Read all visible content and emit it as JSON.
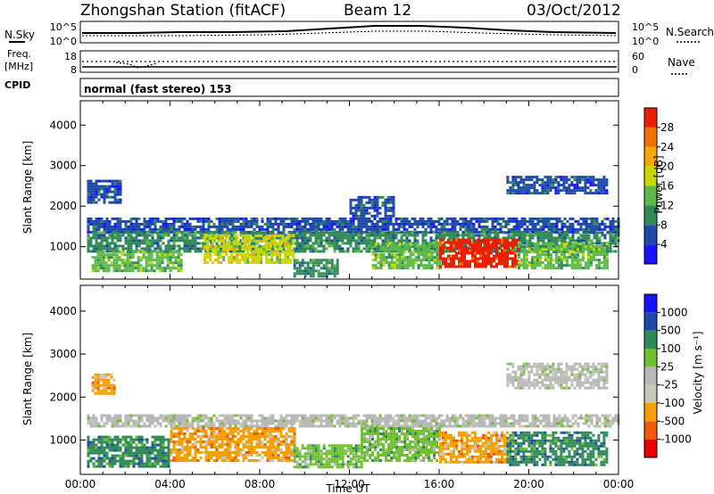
{
  "header": {
    "station": "Zhongshan Station (fitACF)",
    "beam": "Beam 12",
    "date": "03/Oct/2012"
  },
  "panels": {
    "nsky": {
      "left_label": "N.Sky",
      "right_label": "N.Search",
      "left_ticks": [
        "10^5",
        "10^0"
      ],
      "right_ticks": [
        "10^5",
        "10^0"
      ]
    },
    "freq": {
      "left_label_line1": "Freq.",
      "left_label_line2": "[MHz]",
      "right_label": "Nave",
      "left_ticks": [
        "18",
        "8"
      ],
      "right_ticks": [
        "60",
        "0"
      ]
    },
    "cpid": {
      "label": "CPID",
      "text": "normal (fast stereo) 153"
    }
  },
  "colors": {
    "power": [
      "#1414ff",
      "#1e4aa6",
      "#2f8a57",
      "#5bb94a",
      "#c8d800",
      "#f6a800",
      "#f07000",
      "#e82000"
    ],
    "velocity": [
      "#e80000",
      "#f05a00",
      "#f5a000",
      "#c8c8b8",
      "#b8b8b8",
      "#6ec030",
      "#2f8a57",
      "#1e4aa6",
      "#1414ff"
    ]
  },
  "chart_data": [
    {
      "type": "heatmap",
      "name": "power",
      "xlabel": "",
      "ylabel": "Slant Range [km]",
      "xlim": [
        0,
        24
      ],
      "ylim": [
        200,
        4600
      ],
      "y_ticks": [
        1000,
        2000,
        3000,
        4000
      ],
      "colorbar_label": "Power [dB]",
      "colorbar_ticks": [
        "4",
        "8",
        "12",
        "16",
        "20",
        "24",
        "28"
      ],
      "regions": [
        {
          "t0": 0.3,
          "t1": 24,
          "r0": 1380,
          "r1": 1720,
          "level": 1
        },
        {
          "t0": 0.3,
          "t1": 24,
          "r0": 900,
          "r1": 1380,
          "level": 2
        },
        {
          "t0": 0.5,
          "t1": 4.5,
          "r0": 400,
          "r1": 900,
          "level": 3
        },
        {
          "t0": 5.5,
          "t1": 9.5,
          "r0": 600,
          "r1": 1300,
          "level": 4
        },
        {
          "t0": 9.5,
          "t1": 11.5,
          "r0": 300,
          "r1": 700,
          "level": 2
        },
        {
          "t0": 13,
          "t1": 16,
          "r0": 450,
          "r1": 1100,
          "level": 3
        },
        {
          "t0": 16,
          "t1": 19.5,
          "r0": 500,
          "r1": 1200,
          "level": 7
        },
        {
          "t0": 19.5,
          "t1": 23.5,
          "r0": 450,
          "r1": 1100,
          "level": 3
        },
        {
          "t0": 19,
          "t1": 23.5,
          "r0": 2350,
          "r1": 2750,
          "level": 1
        },
        {
          "t0": 0.3,
          "t1": 1.8,
          "r0": 2100,
          "r1": 2650,
          "level": 1
        },
        {
          "t0": 12,
          "t1": 14,
          "r0": 1750,
          "r1": 2250,
          "level": 1
        }
      ]
    },
    {
      "type": "heatmap",
      "name": "velocity",
      "xlabel": "Time UT",
      "ylabel": "Slant Range [km]",
      "xlim": [
        0,
        24
      ],
      "ylim": [
        200,
        4600
      ],
      "x_ticks": [
        "00:00",
        "04:00",
        "08:00",
        "12:00",
        "16:00",
        "20:00",
        "00:00"
      ],
      "y_ticks": [
        1000,
        2000,
        3000,
        4000
      ],
      "colorbar_label": "Velocity [m s⁻¹]",
      "colorbar_ticks": [
        "-1000",
        "-500",
        "-100",
        "-25",
        "25",
        "100",
        "500",
        "1000"
      ],
      "regions": [
        {
          "t0": 0.3,
          "t1": 24,
          "r0": 1350,
          "r1": 1600,
          "level": 4
        },
        {
          "t0": 0.3,
          "t1": 4.0,
          "r0": 400,
          "r1": 1100,
          "level": 6
        },
        {
          "t0": 4.0,
          "t1": 9.5,
          "r0": 500,
          "r1": 1300,
          "level": 2
        },
        {
          "t0": 9.5,
          "t1": 12.5,
          "r0": 400,
          "r1": 900,
          "level": 5
        },
        {
          "t0": 12.5,
          "t1": 16.0,
          "r0": 500,
          "r1": 1300,
          "level": 5
        },
        {
          "t0": 16.0,
          "t1": 19.0,
          "r0": 500,
          "r1": 1200,
          "level": 2
        },
        {
          "t0": 19.0,
          "t1": 23.5,
          "r0": 450,
          "r1": 1200,
          "level": 6
        },
        {
          "t0": 19.0,
          "t1": 23.5,
          "r0": 2200,
          "r1": 2800,
          "level": 4
        },
        {
          "t0": 0.5,
          "t1": 1.5,
          "r0": 2100,
          "r1": 2550,
          "level": 2
        }
      ]
    }
  ]
}
